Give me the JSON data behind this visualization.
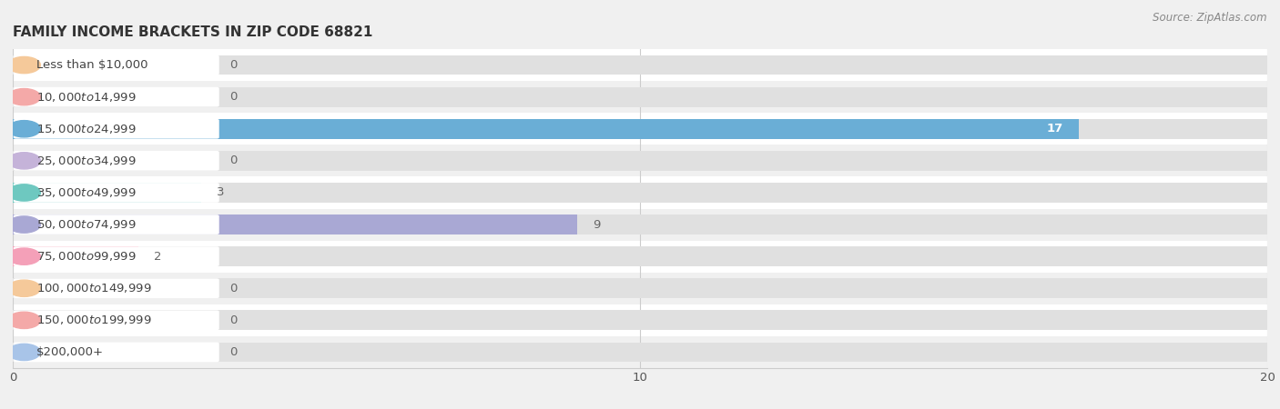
{
  "title": "FAMILY INCOME BRACKETS IN ZIP CODE 68821",
  "source": "Source: ZipAtlas.com",
  "categories": [
    "Less than $10,000",
    "$10,000 to $14,999",
    "$15,000 to $24,999",
    "$25,000 to $34,999",
    "$35,000 to $49,999",
    "$50,000 to $74,999",
    "$75,000 to $99,999",
    "$100,000 to $149,999",
    "$150,000 to $199,999",
    "$200,000+"
  ],
  "values": [
    0,
    0,
    17,
    0,
    3,
    9,
    2,
    0,
    0,
    0
  ],
  "bar_colors": [
    "#f5c99a",
    "#f4a9a8",
    "#6aaed6",
    "#c5b3d9",
    "#6ec8c0",
    "#a9a8d4",
    "#f4a0b8",
    "#f5c99a",
    "#f4a9a8",
    "#a8c4e8"
  ],
  "xlim": [
    0,
    20
  ],
  "xticks": [
    0,
    10,
    20
  ],
  "background_color": "#f0f0f0",
  "row_even_color": "#ffffff",
  "row_odd_color": "#f0f0f0",
  "bar_bg_color": "#e0e0e0",
  "title_fontsize": 11,
  "label_fontsize": 9.5,
  "value_fontsize": 9.5,
  "source_fontsize": 8.5
}
